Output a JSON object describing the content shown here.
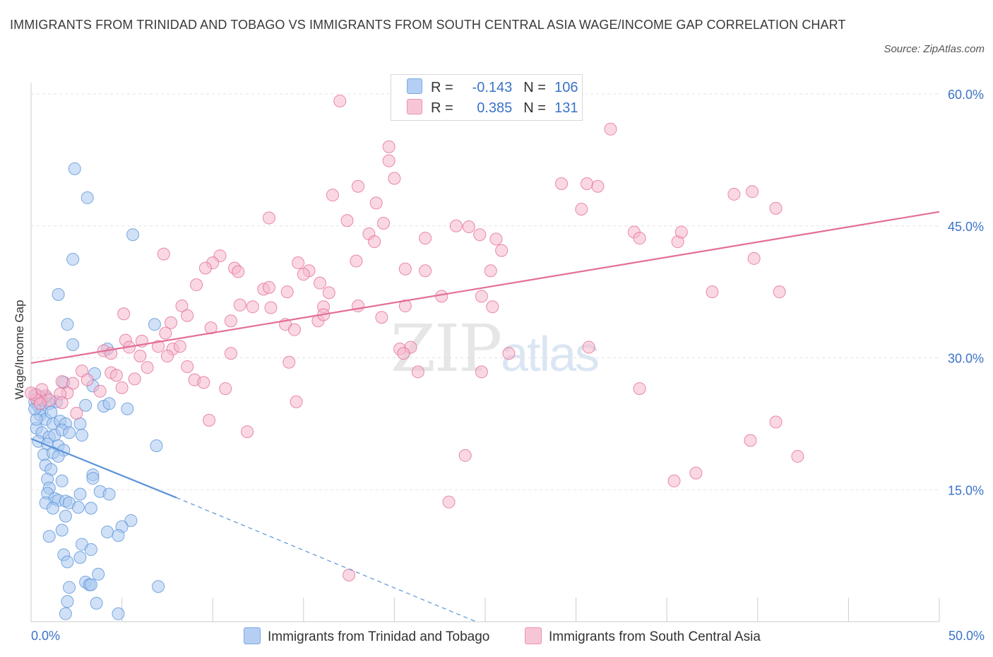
{
  "title": "IMMIGRANTS FROM TRINIDAD AND TOBAGO VS IMMIGRANTS FROM SOUTH CENTRAL ASIA WAGE/INCOME GAP CORRELATION CHART",
  "source": "Source: ZipAtlas.com",
  "watermark": {
    "zip": "ZIP",
    "atlas": "atlas"
  },
  "legend": {
    "rows": [
      {
        "r_label": "R =",
        "r_value": "-0.143",
        "n_label": "N =",
        "n_value": "106",
        "color": "#a9c8f0"
      },
      {
        "r_label": "R =",
        "r_value": "0.385",
        "n_label": "N =",
        "n_value": "131",
        "color": "#f5b8cc"
      }
    ]
  },
  "chart_data": {
    "type": "scatter",
    "title": "IMMIGRANTS FROM TRINIDAD AND TOBAGO VS IMMIGRANTS FROM SOUTH CENTRAL ASIA WAGE/INCOME GAP CORRELATION CHART",
    "xlabel": "",
    "ylabel": "Wage/Income Gap",
    "xlim": [
      0,
      50
    ],
    "ylim": [
      0,
      60
    ],
    "x_tick_labels": [
      "0.0%",
      "50.0%"
    ],
    "y_tick_labels": [
      {
        "value": 15,
        "label": "15.0%"
      },
      {
        "value": 30,
        "label": "30.0%"
      },
      {
        "value": 45,
        "label": "45.0%"
      },
      {
        "value": 60,
        "label": "60.0%"
      }
    ],
    "grid": true,
    "legend_position": "bottom",
    "series": [
      {
        "name": "Immigrants from Trinidad and Tobago",
        "color": "#5b93d9",
        "fill": "#a9c8f0",
        "trend": {
          "x0": 0,
          "y0": 20.8,
          "x1": 8,
          "y1": 14.1,
          "dashed_to": {
            "x": 24.5,
            "y": 0
          }
        },
        "points": [
          [
            2.4,
            51.5
          ],
          [
            3.1,
            48.2
          ],
          [
            5.6,
            44.0
          ],
          [
            2.3,
            41.2
          ],
          [
            1.5,
            37.2
          ],
          [
            2.0,
            33.8
          ],
          [
            6.8,
            33.8
          ],
          [
            2.3,
            31.5
          ],
          [
            4.2,
            31.0
          ],
          [
            3.5,
            28.2
          ],
          [
            1.8,
            27.2
          ],
          [
            3.4,
            26.8
          ],
          [
            0.2,
            25.0
          ],
          [
            0.4,
            24.5
          ],
          [
            0.6,
            24.0
          ],
          [
            0.3,
            25.8
          ],
          [
            0.8,
            25.5
          ],
          [
            1.4,
            25.0
          ],
          [
            1.0,
            24.8
          ],
          [
            0.5,
            23.5
          ],
          [
            0.8,
            23.0
          ],
          [
            1.2,
            22.5
          ],
          [
            1.6,
            22.8
          ],
          [
            1.9,
            22.5
          ],
          [
            0.3,
            22.0
          ],
          [
            0.6,
            21.5
          ],
          [
            1.0,
            21.0
          ],
          [
            1.3,
            21.2
          ],
          [
            1.7,
            21.8
          ],
          [
            2.1,
            21.5
          ],
          [
            0.4,
            20.5
          ],
          [
            0.9,
            20.2
          ],
          [
            1.5,
            20.0
          ],
          [
            1.8,
            19.5
          ],
          [
            0.7,
            19.0
          ],
          [
            1.2,
            19.2
          ],
          [
            1.5,
            18.8
          ],
          [
            2.7,
            22.5
          ],
          [
            2.8,
            21.2
          ],
          [
            4.0,
            24.5
          ],
          [
            4.3,
            24.8
          ],
          [
            5.3,
            24.2
          ],
          [
            3.0,
            24.6
          ],
          [
            6.9,
            20.0
          ],
          [
            0.8,
            17.8
          ],
          [
            1.1,
            17.3
          ],
          [
            0.9,
            16.2
          ],
          [
            1.7,
            16.0
          ],
          [
            3.4,
            16.7
          ],
          [
            3.4,
            16.3
          ],
          [
            1.0,
            15.2
          ],
          [
            0.9,
            14.6
          ],
          [
            2.7,
            14.5
          ],
          [
            3.8,
            14.8
          ],
          [
            4.3,
            14.5
          ],
          [
            1.3,
            14.0
          ],
          [
            1.5,
            13.8
          ],
          [
            1.9,
            13.7
          ],
          [
            2.1,
            13.5
          ],
          [
            0.8,
            13.5
          ],
          [
            1.2,
            12.9
          ],
          [
            2.6,
            13.0
          ],
          [
            3.3,
            12.9
          ],
          [
            1.9,
            12.0
          ],
          [
            5.5,
            11.5
          ],
          [
            5.0,
            10.8
          ],
          [
            1.7,
            10.4
          ],
          [
            4.2,
            10.2
          ],
          [
            4.8,
            9.8
          ],
          [
            1.0,
            9.7
          ],
          [
            2.8,
            8.8
          ],
          [
            3.3,
            8.2
          ],
          [
            1.8,
            7.6
          ],
          [
            2.7,
            7.3
          ],
          [
            2.0,
            6.8
          ],
          [
            3.7,
            5.4
          ],
          [
            3.0,
            4.5
          ],
          [
            3.2,
            4.2
          ],
          [
            3.3,
            4.2
          ],
          [
            2.1,
            3.9
          ],
          [
            7.0,
            4.0
          ],
          [
            2.0,
            2.3
          ],
          [
            3.6,
            2.1
          ],
          [
            1.9,
            0.9
          ],
          [
            4.8,
            0.9
          ],
          [
            0.3,
            23.0
          ],
          [
            0.2,
            24.2
          ],
          [
            0.6,
            25.2
          ],
          [
            1.1,
            23.8
          ]
        ]
      },
      {
        "name": "Immigrants from South Central Asia",
        "color": "#e36e97",
        "fill": "#f5b8cc",
        "trend": {
          "x0": 0,
          "y0": 29.4,
          "x1": 50,
          "y1": 46.6
        },
        "points": [
          [
            17.0,
            59.2
          ],
          [
            31.9,
            56.0
          ],
          [
            19.7,
            54.0
          ],
          [
            19.7,
            52.4
          ],
          [
            20.0,
            50.4
          ],
          [
            29.2,
            49.8
          ],
          [
            30.6,
            49.8
          ],
          [
            31.2,
            49.5
          ],
          [
            18.0,
            49.5
          ],
          [
            16.6,
            48.5
          ],
          [
            38.7,
            48.6
          ],
          [
            39.7,
            48.9
          ],
          [
            19.0,
            47.6
          ],
          [
            30.3,
            46.9
          ],
          [
            41.0,
            47.0
          ],
          [
            13.1,
            45.9
          ],
          [
            17.4,
            45.6
          ],
          [
            19.4,
            45.3
          ],
          [
            23.4,
            45.0
          ],
          [
            24.1,
            44.9
          ],
          [
            18.6,
            44.1
          ],
          [
            18.9,
            43.2
          ],
          [
            21.7,
            43.6
          ],
          [
            24.7,
            44.0
          ],
          [
            25.6,
            43.5
          ],
          [
            33.2,
            44.3
          ],
          [
            33.5,
            43.6
          ],
          [
            35.6,
            43.2
          ],
          [
            35.8,
            44.3
          ],
          [
            25.9,
            42.2
          ],
          [
            7.3,
            41.8
          ],
          [
            10.4,
            41.6
          ],
          [
            10.0,
            40.8
          ],
          [
            17.9,
            41.0
          ],
          [
            14.7,
            40.8
          ],
          [
            9.6,
            40.2
          ],
          [
            11.2,
            40.2
          ],
          [
            15.3,
            39.9
          ],
          [
            20.6,
            40.1
          ],
          [
            21.7,
            39.9
          ],
          [
            25.3,
            39.9
          ],
          [
            11.4,
            39.8
          ],
          [
            15.0,
            39.5
          ],
          [
            9.1,
            38.3
          ],
          [
            15.9,
            38.5
          ],
          [
            12.8,
            37.8
          ],
          [
            13.1,
            38.0
          ],
          [
            14.1,
            37.5
          ],
          [
            16.4,
            37.4
          ],
          [
            22.6,
            37.0
          ],
          [
            24.8,
            37.0
          ],
          [
            37.5,
            37.5
          ],
          [
            39.8,
            41.3
          ],
          [
            41.2,
            37.5
          ],
          [
            8.3,
            35.9
          ],
          [
            11.5,
            36.0
          ],
          [
            12.2,
            35.8
          ],
          [
            13.2,
            35.7
          ],
          [
            16.1,
            35.8
          ],
          [
            18.0,
            35.9
          ],
          [
            20.6,
            35.9
          ],
          [
            25.4,
            35.8
          ],
          [
            5.1,
            35.0
          ],
          [
            8.6,
            34.8
          ],
          [
            11.0,
            34.2
          ],
          [
            15.8,
            34.2
          ],
          [
            16.1,
            34.9
          ],
          [
            19.3,
            34.6
          ],
          [
            7.7,
            34.0
          ],
          [
            9.9,
            33.4
          ],
          [
            14.0,
            33.8
          ],
          [
            14.5,
            33.2
          ],
          [
            7.4,
            32.8
          ],
          [
            5.2,
            32.0
          ],
          [
            6.1,
            31.9
          ],
          [
            5.4,
            31.2
          ],
          [
            7.0,
            31.3
          ],
          [
            7.8,
            31.0
          ],
          [
            8.2,
            31.3
          ],
          [
            20.3,
            31.0
          ],
          [
            20.9,
            31.2
          ],
          [
            30.7,
            31.2
          ],
          [
            4.0,
            30.8
          ],
          [
            4.4,
            30.5
          ],
          [
            6.0,
            30.2
          ],
          [
            7.5,
            30.2
          ],
          [
            11.0,
            30.5
          ],
          [
            20.5,
            30.5
          ],
          [
            26.3,
            30.5
          ],
          [
            14.2,
            29.5
          ],
          [
            8.6,
            29.0
          ],
          [
            6.4,
            28.9
          ],
          [
            2.8,
            28.5
          ],
          [
            4.4,
            28.3
          ],
          [
            3.1,
            27.5
          ],
          [
            4.7,
            28.0
          ],
          [
            5.7,
            27.6
          ],
          [
            9.0,
            27.5
          ],
          [
            9.5,
            27.2
          ],
          [
            1.7,
            27.3
          ],
          [
            2.3,
            27.1
          ],
          [
            10.7,
            26.5
          ],
          [
            5.0,
            26.6
          ],
          [
            3.8,
            26.2
          ],
          [
            2.0,
            26.0
          ],
          [
            1.6,
            25.9
          ],
          [
            0.8,
            25.7
          ],
          [
            0.5,
            25.5
          ],
          [
            0.3,
            25.3
          ],
          [
            0.2,
            25.8
          ],
          [
            1.0,
            25.2
          ],
          [
            1.7,
            24.9
          ],
          [
            0.5,
            24.8
          ],
          [
            14.6,
            25.0
          ],
          [
            2.5,
            23.7
          ],
          [
            9.8,
            22.9
          ],
          [
            11.9,
            21.6
          ],
          [
            21.3,
            28.4
          ],
          [
            24.8,
            28.4
          ],
          [
            41.0,
            22.7
          ],
          [
            42.2,
            18.8
          ],
          [
            23.9,
            18.9
          ],
          [
            39.6,
            20.6
          ],
          [
            36.6,
            16.9
          ],
          [
            35.4,
            16.0
          ],
          [
            23.0,
            13.6
          ],
          [
            17.5,
            5.3
          ],
          [
            33.5,
            26.5
          ],
          [
            0.0,
            26.0
          ],
          [
            0.6,
            26.4
          ]
        ]
      }
    ]
  },
  "bottom_legend": [
    {
      "label": "Immigrants from Trinidad and Tobago",
      "color": "#a9c8f0",
      "border": "#5b93d9"
    },
    {
      "label": "Immigrants from South Central Asia",
      "color": "#f5b8cc",
      "border": "#e36e97"
    }
  ]
}
